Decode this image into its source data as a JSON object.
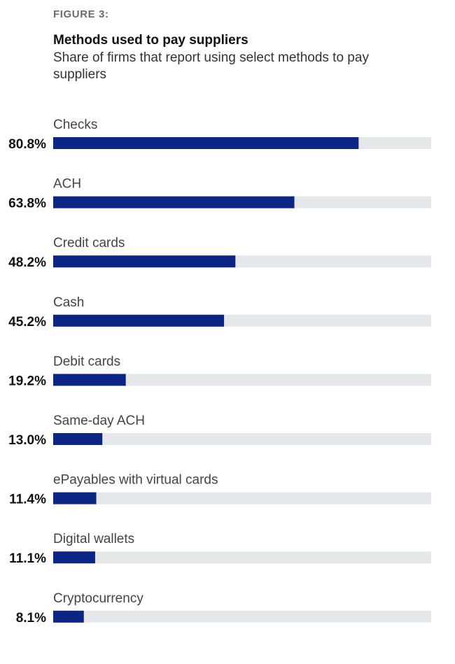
{
  "header": {
    "figure_label": "FIGURE 3:",
    "title": "Methods used to pay suppliers",
    "subtitle": "Share of firms that report using select methods to pay suppliers"
  },
  "colors": {
    "bar": "#0b2585",
    "track": "#e6e7ea"
  },
  "chart_data": {
    "type": "bar",
    "orientation": "horizontal",
    "title": "Methods used to pay suppliers",
    "subtitle": "Share of firms that report using select methods to pay suppliers",
    "unit": "%",
    "xlim": [
      0,
      100
    ],
    "grid": false,
    "categories": [
      "Checks",
      "ACH",
      "Credit cards",
      "Cash",
      "Debit cards",
      "Same-day ACH",
      "ePayables with virtual cards",
      "Digital wallets",
      "Cryptocurrency"
    ],
    "values": [
      80.8,
      63.8,
      48.2,
      45.2,
      19.2,
      13.0,
      11.4,
      11.1,
      8.1
    ],
    "value_labels": [
      "80.8%",
      "63.8%",
      "48.2%",
      "45.2%",
      "19.2%",
      "13.0%",
      "11.4%",
      "11.1%",
      "8.1%"
    ]
  }
}
